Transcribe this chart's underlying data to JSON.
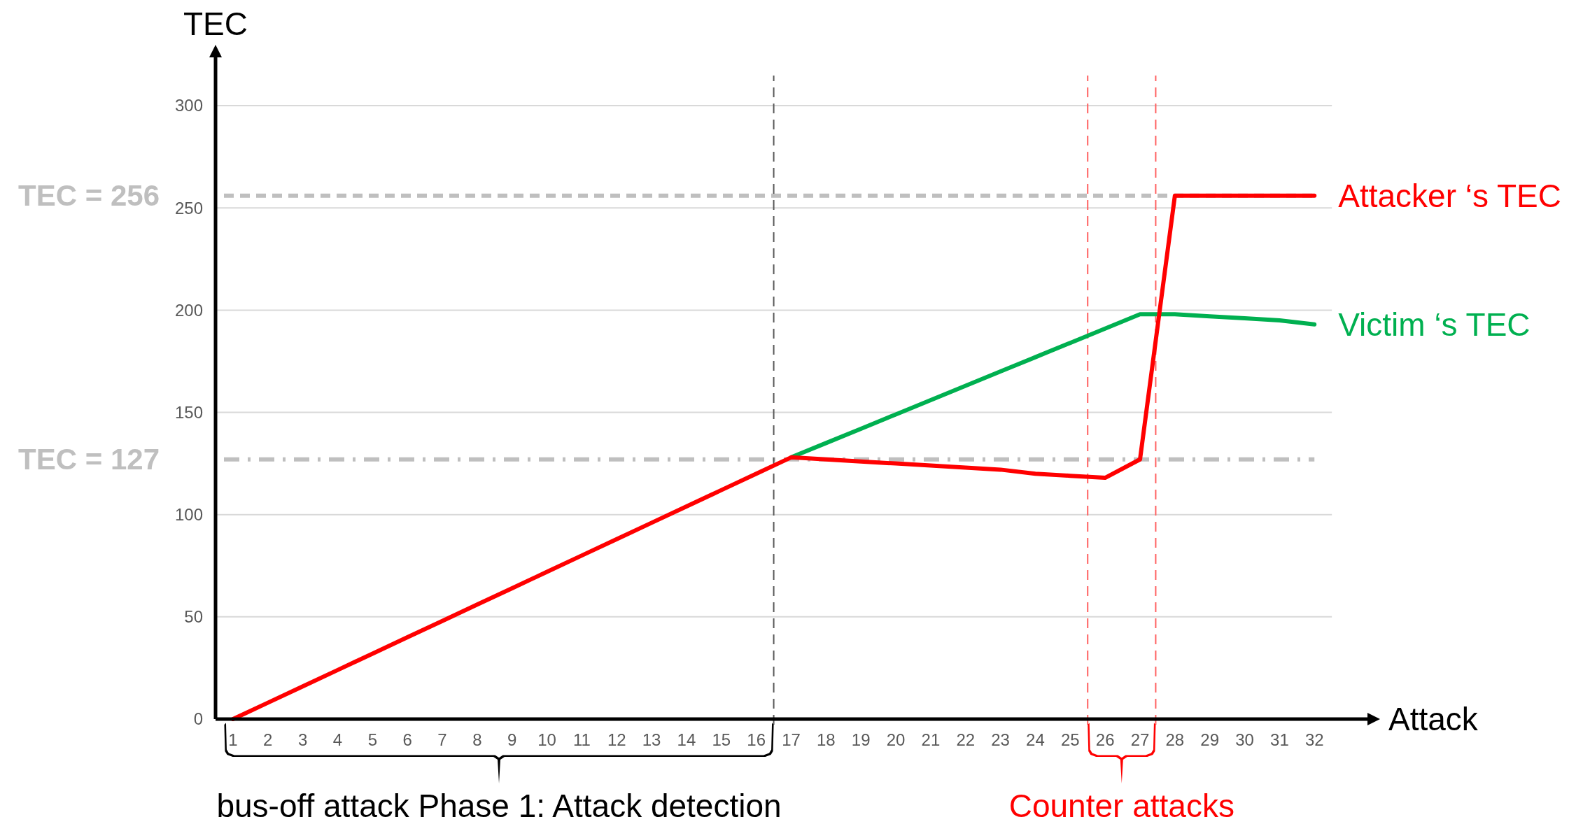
{
  "chart_data": {
    "type": "line",
    "xlabel": "Attack",
    "ylabel": "TEC",
    "x": [
      1,
      2,
      3,
      4,
      5,
      6,
      7,
      8,
      9,
      10,
      11,
      12,
      13,
      14,
      15,
      16,
      17,
      18,
      19,
      20,
      21,
      22,
      23,
      24,
      25,
      26,
      27,
      28,
      29,
      30,
      31,
      32
    ],
    "xlim": [
      0.5,
      33.6
    ],
    "xticks": [
      1,
      2,
      3,
      4,
      5,
      6,
      7,
      8,
      9,
      10,
      11,
      12,
      13,
      14,
      15,
      16,
      17,
      18,
      19,
      20,
      21,
      22,
      23,
      24,
      25,
      26,
      27,
      28,
      29,
      30,
      31,
      32
    ],
    "ylim": [
      0,
      325
    ],
    "yticks": [
      0,
      50,
      100,
      150,
      200,
      250,
      300
    ],
    "grid": "y",
    "marker": "none",
    "line_style": "solid",
    "series": [
      {
        "name": "Victim ‘s TEC",
        "color": "#00b050",
        "values": [
          null,
          null,
          null,
          null,
          null,
          null,
          null,
          null,
          null,
          null,
          null,
          null,
          null,
          null,
          null,
          null,
          128,
          135,
          142,
          149,
          156,
          163,
          170,
          177,
          184,
          191,
          198,
          198,
          197,
          196,
          195,
          193
        ]
      },
      {
        "name": "Attacker ‘s TEC",
        "color": "#ff0000",
        "values": [
          0,
          8,
          16,
          24,
          32,
          40,
          48,
          56,
          64,
          72,
          80,
          88,
          96,
          104,
          112,
          120,
          128,
          127,
          126,
          125,
          124,
          123,
          122,
          120,
          119,
          118,
          127,
          256,
          256,
          256,
          256,
          256
        ]
      }
    ],
    "ref_lines": [
      {
        "axis": "y",
        "value": 256,
        "label": "TEC = 256",
        "color": "#bfbfbf",
        "line_style": "dashed"
      },
      {
        "axis": "y",
        "value": 127,
        "label": "TEC = 127",
        "color": "#bfbfbf",
        "line_style": "dashdot"
      },
      {
        "axis": "x",
        "value": 16.5,
        "color": "#595959",
        "line_style": "dashed"
      },
      {
        "axis": "x",
        "value": 25.5,
        "color": "#ff6060",
        "line_style": "dashed"
      },
      {
        "axis": "x",
        "value": 27.45,
        "color": "#ff6060",
        "line_style": "dashed"
      }
    ],
    "annotations": [
      "bus-off attack Phase 1: Attack detection",
      "Counter attacks"
    ]
  }
}
